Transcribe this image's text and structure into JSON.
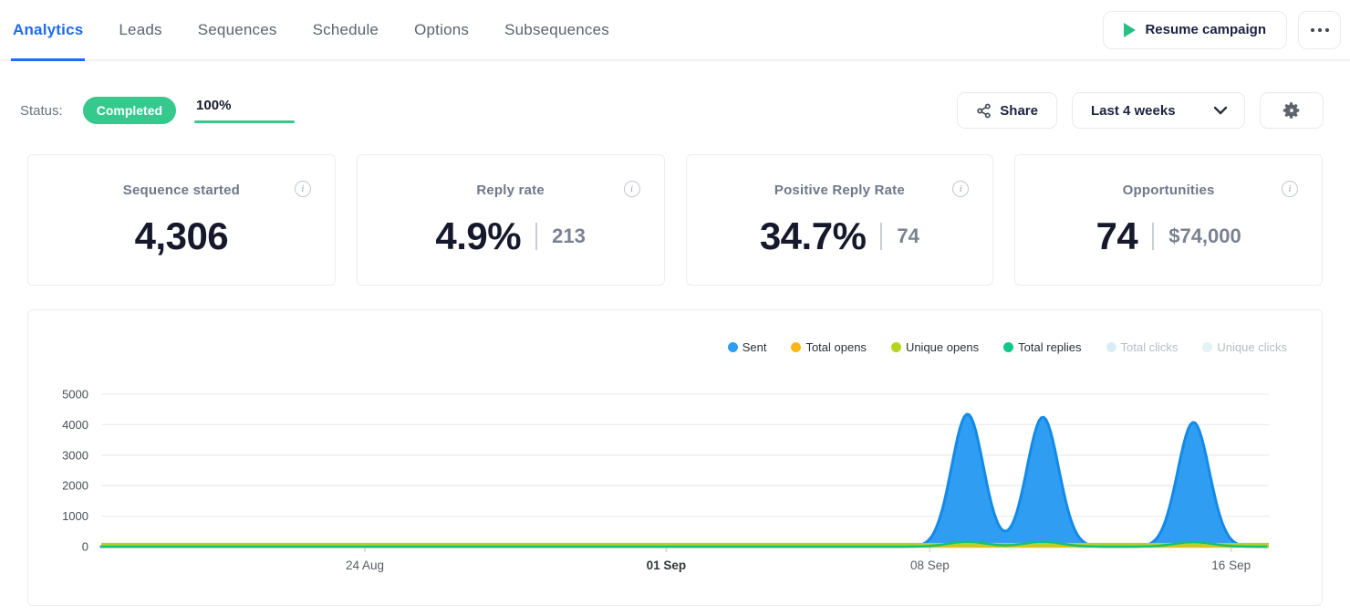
{
  "nav": {
    "tabs": [
      {
        "label": "Analytics",
        "active": true
      },
      {
        "label": "Leads",
        "active": false
      },
      {
        "label": "Sequences",
        "active": false
      },
      {
        "label": "Schedule",
        "active": false
      },
      {
        "label": "Options",
        "active": false
      },
      {
        "label": "Subsequences",
        "active": false
      }
    ],
    "resume_label": "Resume campaign"
  },
  "status": {
    "label": "Status:",
    "badge": "Completed",
    "progress": "100%"
  },
  "toolbar": {
    "share_label": "Share",
    "range_label": "Last 4 weeks"
  },
  "metrics": [
    {
      "title": "Sequence started",
      "value": "4,306",
      "secondary": ""
    },
    {
      "title": "Reply rate",
      "value": "4.9%",
      "secondary": "213"
    },
    {
      "title": "Positive Reply Rate",
      "value": "34.7%",
      "secondary": "74"
    },
    {
      "title": "Opportunities",
      "value": "74",
      "secondary": "$74,000"
    }
  ],
  "chart_data": {
    "type": "area",
    "title": "",
    "xlabel": "",
    "ylabel": "",
    "ylim": [
      0,
      5300
    ],
    "yticks": [
      0,
      1000,
      2000,
      3000,
      4000,
      5000
    ],
    "grid": true,
    "legend_position": "top-right",
    "x_domain_days": [
      0,
      31
    ],
    "x_domain_dates": [
      "17 Aug",
      "17 Sep"
    ],
    "xticks": [
      {
        "label": "24 Aug",
        "day": 7,
        "bold": false
      },
      {
        "label": "01 Sep",
        "day": 15,
        "bold": true
      },
      {
        "label": "08 Sep",
        "day": 22,
        "bold": false
      },
      {
        "label": "16 Sep",
        "day": 30,
        "bold": false
      }
    ],
    "series": [
      {
        "name": "Sent",
        "color": "#2f9ef2",
        "stroke": "#128ae8",
        "disabled": false,
        "render": "area-spikes",
        "sigma_days": 0.42,
        "points": [
          {
            "date": "09 Sep",
            "day": 23,
            "value": 4350
          },
          {
            "date": "11 Sep",
            "day": 25,
            "value": 4250
          },
          {
            "date": "15 Sep",
            "day": 29,
            "value": 4080
          }
        ]
      },
      {
        "name": "Total opens",
        "color": "#fbb717",
        "line_color": "#d9c41c",
        "disabled": false,
        "render": "flat-line",
        "value": 30,
        "stroke_width": 4.5
      },
      {
        "name": "Unique opens",
        "color": "#b4d41f",
        "line_color": "#b5cf2f",
        "disabled": false,
        "render": "flat-line",
        "value": 80,
        "stroke_width": 3
      },
      {
        "name": "Total replies",
        "color": "#10c887",
        "line_color": "#14c17c",
        "disabled": false,
        "render": "spike-line",
        "sigma_days": 0.5,
        "stroke_width": 2.5,
        "points": [
          {
            "date": "09 Sep",
            "day": 23,
            "value": 160
          },
          {
            "date": "11 Sep",
            "day": 25,
            "value": 160
          },
          {
            "date": "15 Sep",
            "day": 29,
            "value": 150
          }
        ]
      },
      {
        "name": "Total clicks",
        "color": "#d9edf9",
        "disabled": true,
        "render": "none"
      },
      {
        "name": "Unique clicks",
        "color": "#e3f2f4",
        "disabled": true,
        "render": "none"
      }
    ],
    "colors": {
      "grid": "#ebedf0",
      "axis_text": "#4a4e55",
      "xtick_text": "#585c63"
    }
  },
  "ui_colors": {
    "accent_blue": "#2069f3",
    "green": "#35c98e",
    "text_dark": "#16192c"
  }
}
